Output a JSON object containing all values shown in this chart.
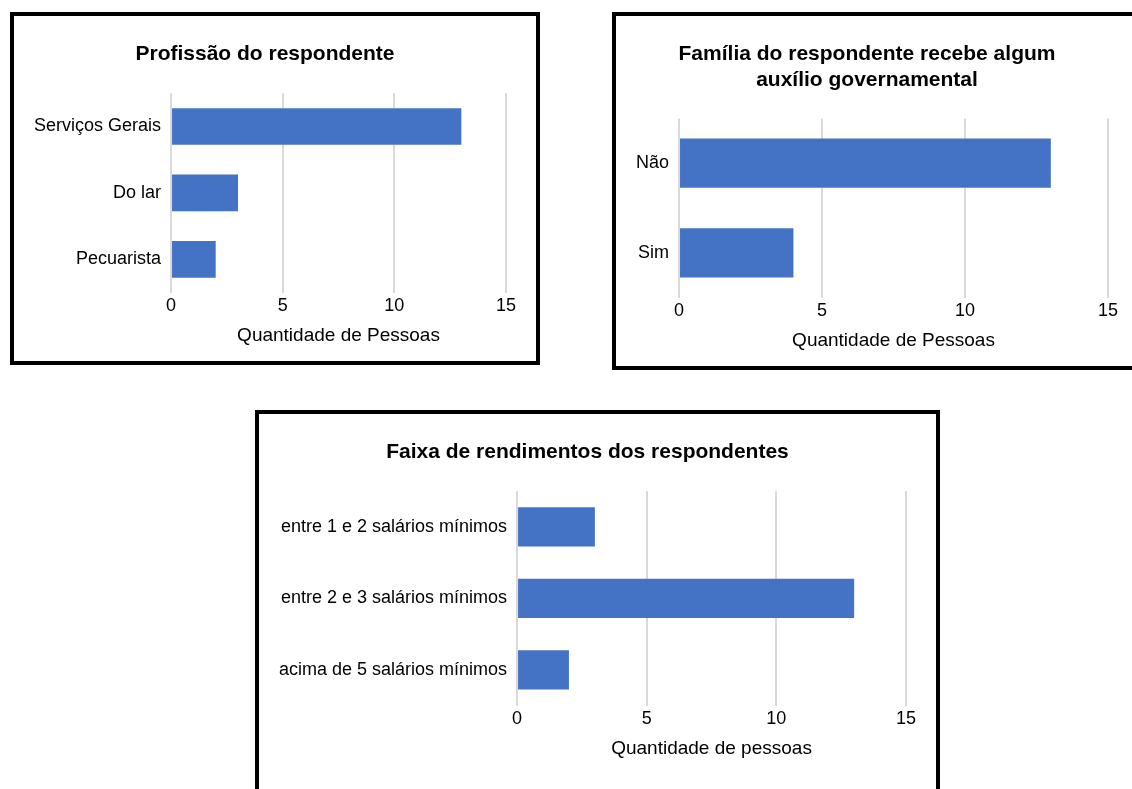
{
  "chart_data": [
    {
      "type": "bar",
      "orientation": "horizontal",
      "title": "Profissão do respondente",
      "xlabel": "Quantidade de Pessoas",
      "categories": [
        "Serviços Gerais",
        "Do lar",
        "Pecuarista"
      ],
      "values": [
        13,
        3,
        2
      ],
      "color": "#4472c4",
      "xlim": [
        0,
        15
      ],
      "xticks": [
        0,
        5,
        10,
        15
      ],
      "grid": "x"
    },
    {
      "type": "bar",
      "orientation": "horizontal",
      "title": "Família do respondente recebe algum auxílio governamental",
      "xlabel": "Quantidade de Pessoas",
      "categories": [
        "Não",
        "Sim"
      ],
      "values": [
        13,
        4
      ],
      "color": "#4472c4",
      "xlim": [
        0,
        15
      ],
      "xticks": [
        0,
        5,
        10,
        15
      ],
      "grid": "x"
    },
    {
      "type": "bar",
      "orientation": "horizontal",
      "title": "Faixa de rendimentos dos respondentes",
      "xlabel": "Quantidade de pessoas",
      "categories": [
        "entre 1 e 2 salários mínimos",
        "entre 2 e 3 salários mínimos",
        "acima de 5 salários mínimos"
      ],
      "values": [
        3,
        13,
        2
      ],
      "color": "#4472c4",
      "xlim": [
        0,
        15
      ],
      "xticks": [
        0,
        5,
        10,
        15
      ],
      "grid": "x"
    }
  ]
}
